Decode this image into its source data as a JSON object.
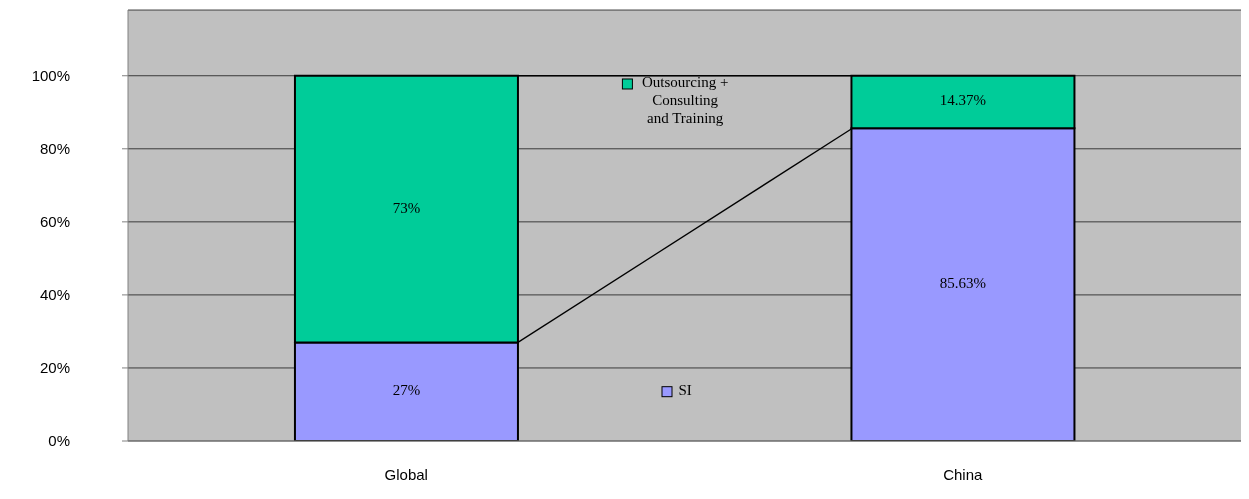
{
  "chart_data": {
    "type": "bar",
    "stacked": true,
    "categories": [
      "Global",
      "China"
    ],
    "series": [
      {
        "name": "SI",
        "color": "#9999ff",
        "values": [
          27,
          85.63
        ],
        "value_labels": [
          "27%",
          "85.63%"
        ]
      },
      {
        "name": "Outsourcing + Consulting and Training",
        "color": "#00cc99",
        "values": [
          73,
          14.37
        ],
        "value_labels": [
          "73%",
          "14.37%"
        ]
      }
    ],
    "ylim": [
      0,
      118
    ],
    "yticks": [
      {
        "value": 0,
        "label": "0%"
      },
      {
        "value": 20,
        "label": "20%"
      },
      {
        "value": 40,
        "label": "40%"
      },
      {
        "value": 60,
        "label": "60%"
      },
      {
        "value": 80,
        "label": "80%"
      },
      {
        "value": 100,
        "label": "100%"
      }
    ],
    "grid": "y",
    "legend": "center"
  }
}
